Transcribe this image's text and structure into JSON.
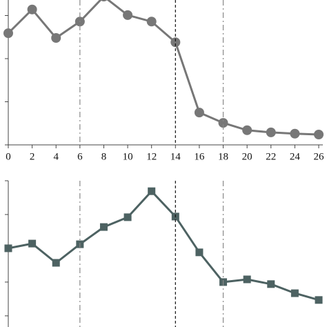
{
  "chart_data": [
    {
      "type": "line",
      "marker": "circle",
      "color": "#777777",
      "x": [
        0,
        2,
        4,
        6,
        8,
        10,
        12,
        14,
        16,
        18,
        20,
        22,
        24,
        26
      ],
      "values": [
        2.59,
        3.14,
        2.48,
        2.86,
        3.44,
        3.01,
        2.86,
        2.38,
        0.75,
        0.51,
        0.34,
        0.29,
        0.26,
        0.24
      ],
      "xlim": [
        0,
        26
      ],
      "xticks": [
        0,
        2,
        4,
        6,
        8,
        10,
        12,
        14,
        16,
        18,
        20,
        22,
        24,
        26
      ],
      "ylim": [
        0,
        3.36
      ],
      "yticks": [
        0,
        1,
        2,
        3
      ],
      "vlines": [
        {
          "x": 6,
          "style": "dash-dot",
          "color": "#888888"
        },
        {
          "x": 14,
          "style": "dashed",
          "color": "#111111"
        },
        {
          "x": 18,
          "style": "dash-dot",
          "color": "#888888"
        }
      ]
    },
    {
      "type": "line",
      "marker": "square",
      "color": "#4d6262",
      "x": [
        0,
        2,
        4,
        6,
        8,
        10,
        12,
        14,
        16,
        18,
        20,
        22,
        24,
        26
      ],
      "values": [
        2.0,
        2.14,
        1.57,
        2.12,
        2.63,
        2.92,
        3.69,
        2.94,
        1.88,
        1.0,
        1.08,
        0.94,
        0.67,
        0.47
      ],
      "xlim": [
        0,
        26
      ],
      "ylim": [
        -0.33,
        4
      ],
      "yticks": [
        0,
        1,
        2,
        3,
        4
      ],
      "vlines": [
        {
          "x": 6,
          "style": "dash-dot",
          "color": "#888888"
        },
        {
          "x": 14,
          "style": "dashed",
          "color": "#111111"
        },
        {
          "x": 18,
          "style": "dash-dot",
          "color": "#888888"
        }
      ]
    }
  ]
}
